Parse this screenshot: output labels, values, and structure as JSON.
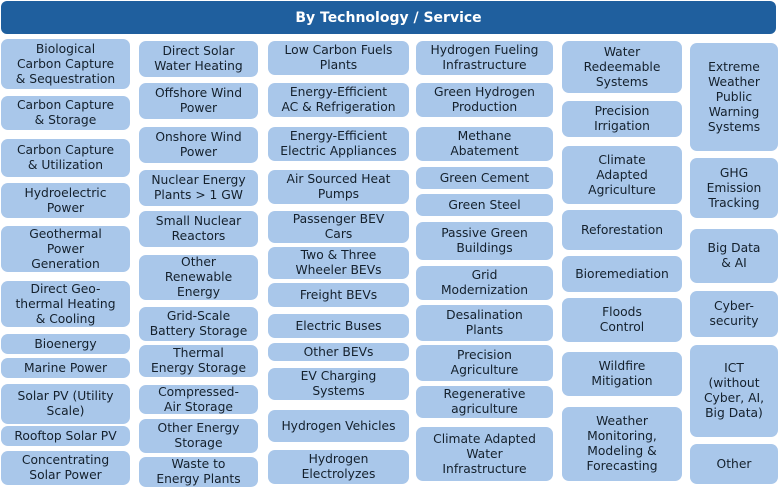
{
  "header": {
    "title": "By Technology / Service"
  },
  "columns": [
    {
      "items": [
        "Biological\nCarbon Capture\n& Sequestration",
        "Carbon Capture\n& Storage",
        "Carbon Capture\n& Utilization",
        "Hydroelectric\nPower",
        "Geothermal\nPower\nGeneration",
        "Direct Geo-\nthermal Heating\n& Cooling",
        "Bioenergy",
        "Marine Power",
        "Solar PV (Utility\nScale)",
        "Rooftop Solar PV",
        "Concentrating\nSolar Power"
      ]
    },
    {
      "items": [
        "Direct Solar\nWater Heating",
        "Offshore Wind\nPower",
        "Onshore Wind\nPower",
        "Nuclear Energy\nPlants > 1 GW",
        "Small Nuclear\nReactors",
        "Other\nRenewable\nEnergy",
        "Grid-Scale\nBattery Storage",
        "Thermal\nEnergy Storage",
        "Compressed-\nAir Storage",
        "Other Energy\nStorage",
        "Waste to\nEnergy Plants"
      ]
    },
    {
      "items": [
        "Low Carbon Fuels\nPlants",
        "Energy-Efficient\nAC & Refrigeration",
        "Energy-Efficient\nElectric Appliances",
        "Air Sourced Heat\nPumps",
        "Passenger BEV\nCars",
        "Two & Three\nWheeler BEVs",
        "Freight BEVs",
        "Electric Buses",
        "Other BEVs",
        "EV Charging\nSystems",
        "Hydrogen Vehicles",
        "Hydrogen\nElectrolyzes"
      ]
    },
    {
      "items": [
        "Hydrogen Fueling\nInfrastructure",
        "Green Hydrogen\nProduction",
        "Methane\nAbatement",
        "Green Cement",
        "Green Steel",
        "Passive Green\nBuildings",
        "Grid\nModernization",
        "Desalination\nPlants",
        "Precision\nAgriculture",
        "Regenerative\nagriculture",
        "Climate Adapted\nWater\nInfrastructure"
      ]
    },
    {
      "items": [
        "Water\nRedeemable\nSystems",
        "Precision\nIrrigation",
        "Climate\nAdapted\nAgriculture",
        "Reforestation",
        "Bioremediation",
        "Floods\nControl",
        "Wildfire\nMitigation",
        "Weather\nMonitoring,\nModeling &\nForecasting"
      ]
    },
    {
      "items": [
        "Extreme\nWeather\nPublic\nWarning\nSystems",
        "GHG\nEmission\nTracking",
        "Big Data\n& AI",
        "Cyber-\nsecurity",
        "ICT\n(without\nCyber, AI,\nBig Data)",
        "Other"
      ]
    }
  ]
}
